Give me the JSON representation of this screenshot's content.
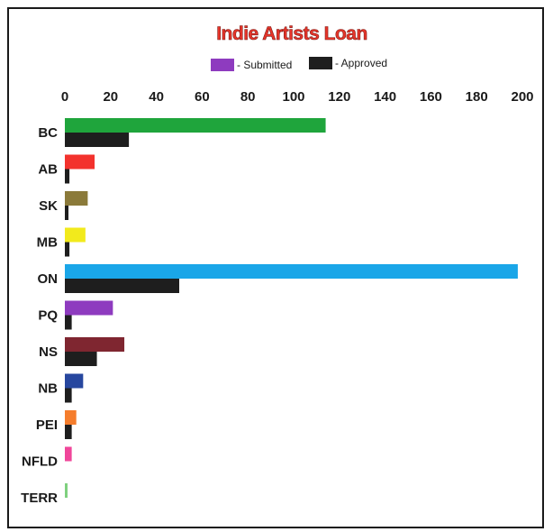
{
  "chart_data": {
    "type": "bar",
    "orientation": "horizontal",
    "title": "Indie Artists Loan",
    "categories": [
      "BC",
      "AB",
      "SK",
      "MB",
      "ON",
      "PQ",
      "NS",
      "NB",
      "PEI",
      "NFLD",
      "TERR"
    ],
    "series": [
      {
        "name": "Submitted",
        "legend_label": "- Submitted",
        "legend_color": "#8e3bbf",
        "bar_colors": [
          "#1fa53c",
          "#f3322d",
          "#8b7a3a",
          "#f2ea1c",
          "#1aa6e8",
          "#8e3bbf",
          "#7f2630",
          "#27479f",
          "#f57d2c",
          "#f0469a",
          "#7fd17f"
        ],
        "values": [
          114,
          13,
          10,
          9,
          198,
          21,
          26,
          8,
          5,
          3,
          1
        ]
      },
      {
        "name": "Approved",
        "legend_label": "- Approved",
        "legend_color": "#1e1e1e",
        "bar_colors": [
          "#1e1e1e"
        ],
        "values": [
          28,
          2,
          1,
          2,
          50,
          3,
          14,
          3,
          3,
          0,
          0
        ]
      }
    ],
    "xlim": [
      0,
      200
    ],
    "xticks": [
      0,
      20,
      40,
      60,
      80,
      100,
      120,
      140,
      160,
      180,
      200
    ],
    "tick_position": "top",
    "legend_position": "top-center",
    "grid": false
  }
}
